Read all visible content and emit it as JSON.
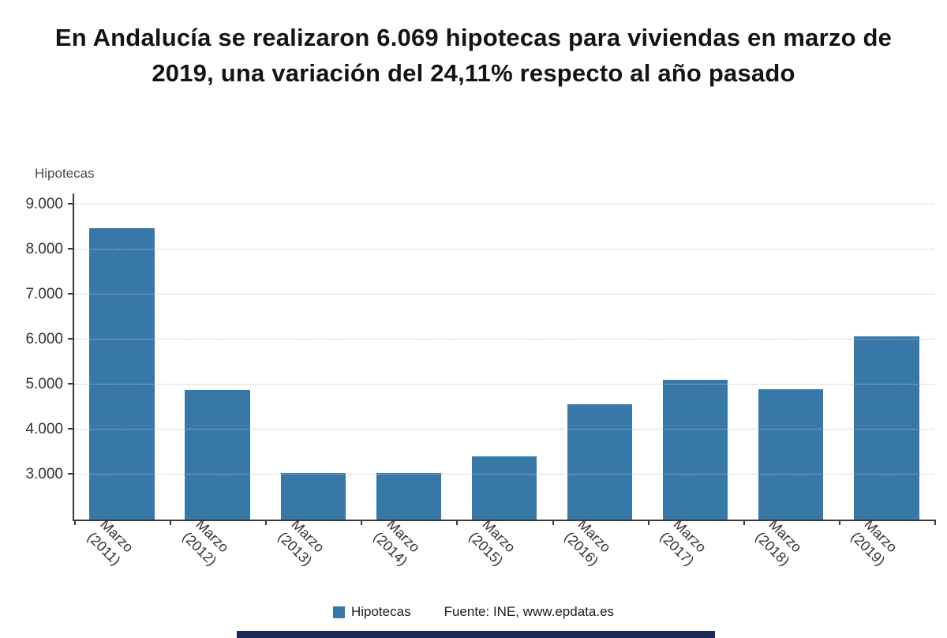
{
  "title": "En Andalucía se realizaron 6.069 hipotecas para viviendas en marzo de 2019, una variación del 24,11% respecto al año pasado",
  "axis_title": "Hipotecas",
  "legend": {
    "label": "Hipotecas"
  },
  "source": "Fuente: INE, www.epdata.es",
  "colors": {
    "bar": "#3878a8",
    "banner": "#1c2a56"
  },
  "chart_data": {
    "type": "bar",
    "title": "En Andalucía se realizaron 6.069 hipotecas para viviendas en marzo de 2019, una variación del 24,11% respecto al año pasado",
    "xlabel": "",
    "ylabel": "Hipotecas",
    "categories": [
      "Marzo (2011)",
      "Marzo (2012)",
      "Marzo (2013)",
      "Marzo (2014)",
      "Marzo (2015)",
      "Marzo (2016)",
      "Marzo (2017)",
      "Marzo (2018)",
      "Marzo (2019)"
    ],
    "values": [
      8470,
      4880,
      3030,
      3040,
      3400,
      4560,
      5100,
      4890,
      6069
    ],
    "y_ticks": [
      3000,
      4000,
      5000,
      6000,
      7000,
      8000,
      9000
    ],
    "y_tick_labels": [
      "3.000",
      "4.000",
      "5.000",
      "6.000",
      "7.000",
      "8.000",
      "9.000"
    ],
    "ylim": [
      2000,
      9250
    ],
    "grid": "dotted-horizontal",
    "legend_position": "bottom",
    "legend_entries": [
      "Hipotecas"
    ]
  }
}
